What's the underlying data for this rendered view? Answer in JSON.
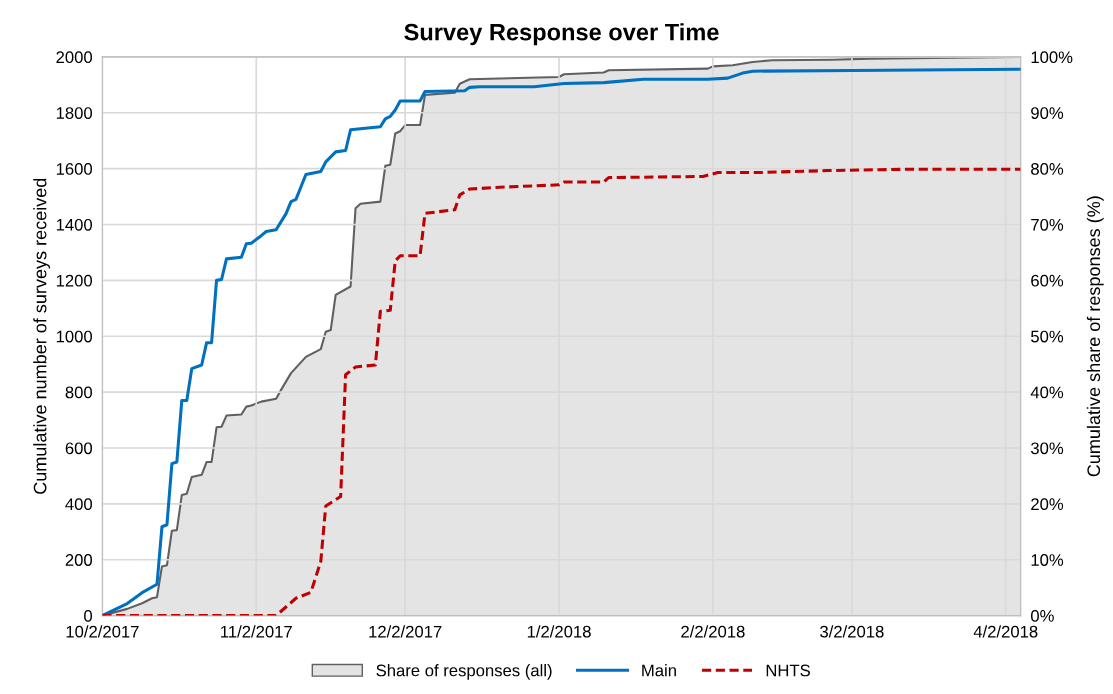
{
  "chart_data": {
    "type": "line",
    "title": "Survey Response over Time",
    "ylabel": "Cumulative number of surveys received",
    "y2label": "Cumulative share of responses (%)",
    "xlim": [
      "2017-10-02",
      "2018-04-05"
    ],
    "xticks": [
      {
        "value": "2017-10-02",
        "label": "10/2/2017"
      },
      {
        "value": "2017-11-02",
        "label": "11/2/2017"
      },
      {
        "value": "2017-12-02",
        "label": "12/2/2017"
      },
      {
        "value": "2018-01-02",
        "label": "1/2/2018"
      },
      {
        "value": "2018-02-02",
        "label": "2/2/2018"
      },
      {
        "value": "2018-03-02",
        "label": "3/2/2018"
      },
      {
        "value": "2018-04-02",
        "label": "4/2/2018"
      }
    ],
    "ylim": [
      0,
      2000
    ],
    "yticks": [
      0,
      200,
      400,
      600,
      800,
      1000,
      1200,
      1400,
      1600,
      1800,
      2000
    ],
    "y2lim": [
      0,
      100
    ],
    "y2ticks": [
      {
        "value": 0,
        "label": "0%"
      },
      {
        "value": 10,
        "label": "10%"
      },
      {
        "value": 20,
        "label": "20%"
      },
      {
        "value": 30,
        "label": "30%"
      },
      {
        "value": 40,
        "label": "40%"
      },
      {
        "value": 50,
        "label": "50%"
      },
      {
        "value": 60,
        "label": "60%"
      },
      {
        "value": 70,
        "label": "70%"
      },
      {
        "value": 80,
        "label": "80%"
      },
      {
        "value": 90,
        "label": "90%"
      },
      {
        "value": 100,
        "label": "100%"
      }
    ],
    "grid": true,
    "legend": "bottom",
    "series": [
      {
        "name": "Share of responses (all)",
        "type": "area",
        "axis": "y2",
        "color": "#e4e4e4",
        "x": [
          "2017-10-02",
          "2017-10-07",
          "2017-10-10",
          "2017-10-12",
          "2017-10-13",
          "2017-10-14",
          "2017-10-15",
          "2017-10-16",
          "2017-10-17",
          "2017-10-18",
          "2017-10-19",
          "2017-10-20",
          "2017-10-22",
          "2017-10-23",
          "2017-10-24",
          "2017-10-25",
          "2017-10-26",
          "2017-10-27",
          "2017-10-30",
          "2017-10-31",
          "2017-11-01",
          "2017-11-03",
          "2017-11-06",
          "2017-11-07",
          "2017-11-09",
          "2017-11-12",
          "2017-11-15",
          "2017-11-16",
          "2017-11-17",
          "2017-11-18",
          "2017-11-21",
          "2017-11-22",
          "2017-11-23",
          "2017-11-27",
          "2017-11-28",
          "2017-11-29",
          "2017-11-30",
          "2017-12-01",
          "2017-12-02",
          "2017-12-05",
          "2017-12-06",
          "2017-12-12",
          "2017-12-13",
          "2017-12-15",
          "2018-01-02",
          "2018-01-03",
          "2018-01-11",
          "2018-01-12",
          "2018-02-01",
          "2018-02-02",
          "2018-02-06",
          "2018-02-10",
          "2018-02-14",
          "2018-02-26",
          "2018-03-06",
          "2018-04-05"
        ],
        "values": [
          0,
          1.2,
          2.2,
          3.1,
          3.3,
          8.8,
          9.0,
          15.2,
          15.3,
          21.6,
          21.8,
          24.8,
          25.2,
          27.5,
          27.5,
          33.7,
          33.8,
          35.8,
          36.0,
          37.4,
          37.6,
          38.3,
          38.8,
          40.4,
          43.4,
          46.3,
          47.7,
          50.8,
          51.1,
          57.4,
          58.9,
          72.9,
          73.7,
          74.1,
          80.5,
          80.7,
          86.3,
          86.7,
          87.8,
          87.8,
          93.2,
          93.6,
          95.2,
          96.0,
          96.4,
          96.9,
          97.2,
          97.6,
          97.9,
          98.3,
          98.5,
          99.1,
          99.4,
          99.5,
          99.7,
          100
        ]
      },
      {
        "name": "Main",
        "color": "#0070c0",
        "line_style": "solid",
        "x": [
          "2017-10-02",
          "2017-10-07",
          "2017-10-10",
          "2017-10-13",
          "2017-10-14",
          "2017-10-15",
          "2017-10-16",
          "2017-10-17",
          "2017-10-18",
          "2017-10-19",
          "2017-10-20",
          "2017-10-22",
          "2017-10-23",
          "2017-10-24",
          "2017-10-25",
          "2017-10-26",
          "2017-10-27",
          "2017-10-30",
          "2017-10-31",
          "2017-11-01",
          "2017-11-03",
          "2017-11-04",
          "2017-11-06",
          "2017-11-08",
          "2017-11-09",
          "2017-11-10",
          "2017-11-12",
          "2017-11-15",
          "2017-11-16",
          "2017-11-18",
          "2017-11-20",
          "2017-11-21",
          "2017-11-22",
          "2017-11-27",
          "2017-11-28",
          "2017-11-29",
          "2017-11-30",
          "2017-12-01",
          "2017-12-05",
          "2017-12-06",
          "2017-12-14",
          "2017-12-15",
          "2017-12-17",
          "2017-12-28",
          "2018-01-03",
          "2018-01-11",
          "2018-01-19",
          "2018-02-01",
          "2018-02-05",
          "2018-02-08",
          "2018-02-10",
          "2018-03-02",
          "2018-04-05"
        ],
        "values": [
          0,
          43,
          82,
          112,
          318,
          325,
          544,
          550,
          770,
          770,
          884,
          897,
          977,
          977,
          1200,
          1203,
          1277,
          1283,
          1331,
          1333,
          1360,
          1375,
          1381,
          1439,
          1482,
          1490,
          1579,
          1590,
          1624,
          1660,
          1665,
          1739,
          1741,
          1750,
          1778,
          1787,
          1810,
          1842,
          1842,
          1876,
          1879,
          1891,
          1893,
          1893,
          1905,
          1908,
          1920,
          1920,
          1924,
          1942,
          1949,
          1951,
          1956
        ]
      },
      {
        "name": "NHTS",
        "color": "#c00000",
        "line_style": "dashed",
        "x": [
          "2017-10-02",
          "2017-11-06",
          "2017-11-10",
          "2017-11-13",
          "2017-11-15",
          "2017-11-16",
          "2017-11-19",
          "2017-11-20",
          "2017-11-22",
          "2017-11-26",
          "2017-11-27",
          "2017-11-29",
          "2017-11-30",
          "2017-12-01",
          "2017-12-05",
          "2017-12-06",
          "2017-12-12",
          "2017-12-13",
          "2017-12-15",
          "2017-12-22",
          "2018-01-02",
          "2018-01-03",
          "2018-01-11",
          "2018-01-12",
          "2018-01-31",
          "2018-02-03",
          "2018-02-11",
          "2018-02-25",
          "2018-03-14",
          "2018-04-05"
        ],
        "values": [
          0,
          0,
          62,
          83,
          194,
          392,
          426,
          862,
          890,
          897,
          1089,
          1093,
          1270,
          1288,
          1288,
          1440,
          1453,
          1506,
          1527,
          1534,
          1542,
          1552,
          1552,
          1568,
          1572,
          1586,
          1586,
          1593,
          1598,
          1598
        ]
      }
    ]
  }
}
